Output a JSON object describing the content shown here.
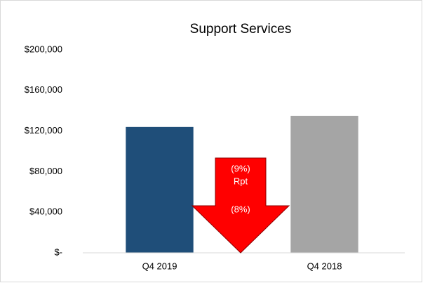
{
  "chart_data": {
    "type": "bar",
    "title": "Support Services",
    "categories": [
      "Q4 2019",
      "Q4 2018"
    ],
    "values": [
      124000,
      135000
    ],
    "colors": [
      "#1f4e79",
      "#a5a5a5"
    ],
    "ylim": [
      0,
      200000
    ],
    "yticks": [
      {
        "value": 0,
        "label": "$-"
      },
      {
        "value": 40000,
        "label": "$40,000"
      },
      {
        "value": 80000,
        "label": "$80,000"
      },
      {
        "value": 120000,
        "label": "$120,000"
      },
      {
        "value": 160000,
        "label": "$160,000"
      },
      {
        "value": 200000,
        "label": "$200,000"
      }
    ],
    "grid": false,
    "annotations": [
      "(9%)",
      "Rpt",
      "(8%)"
    ]
  }
}
